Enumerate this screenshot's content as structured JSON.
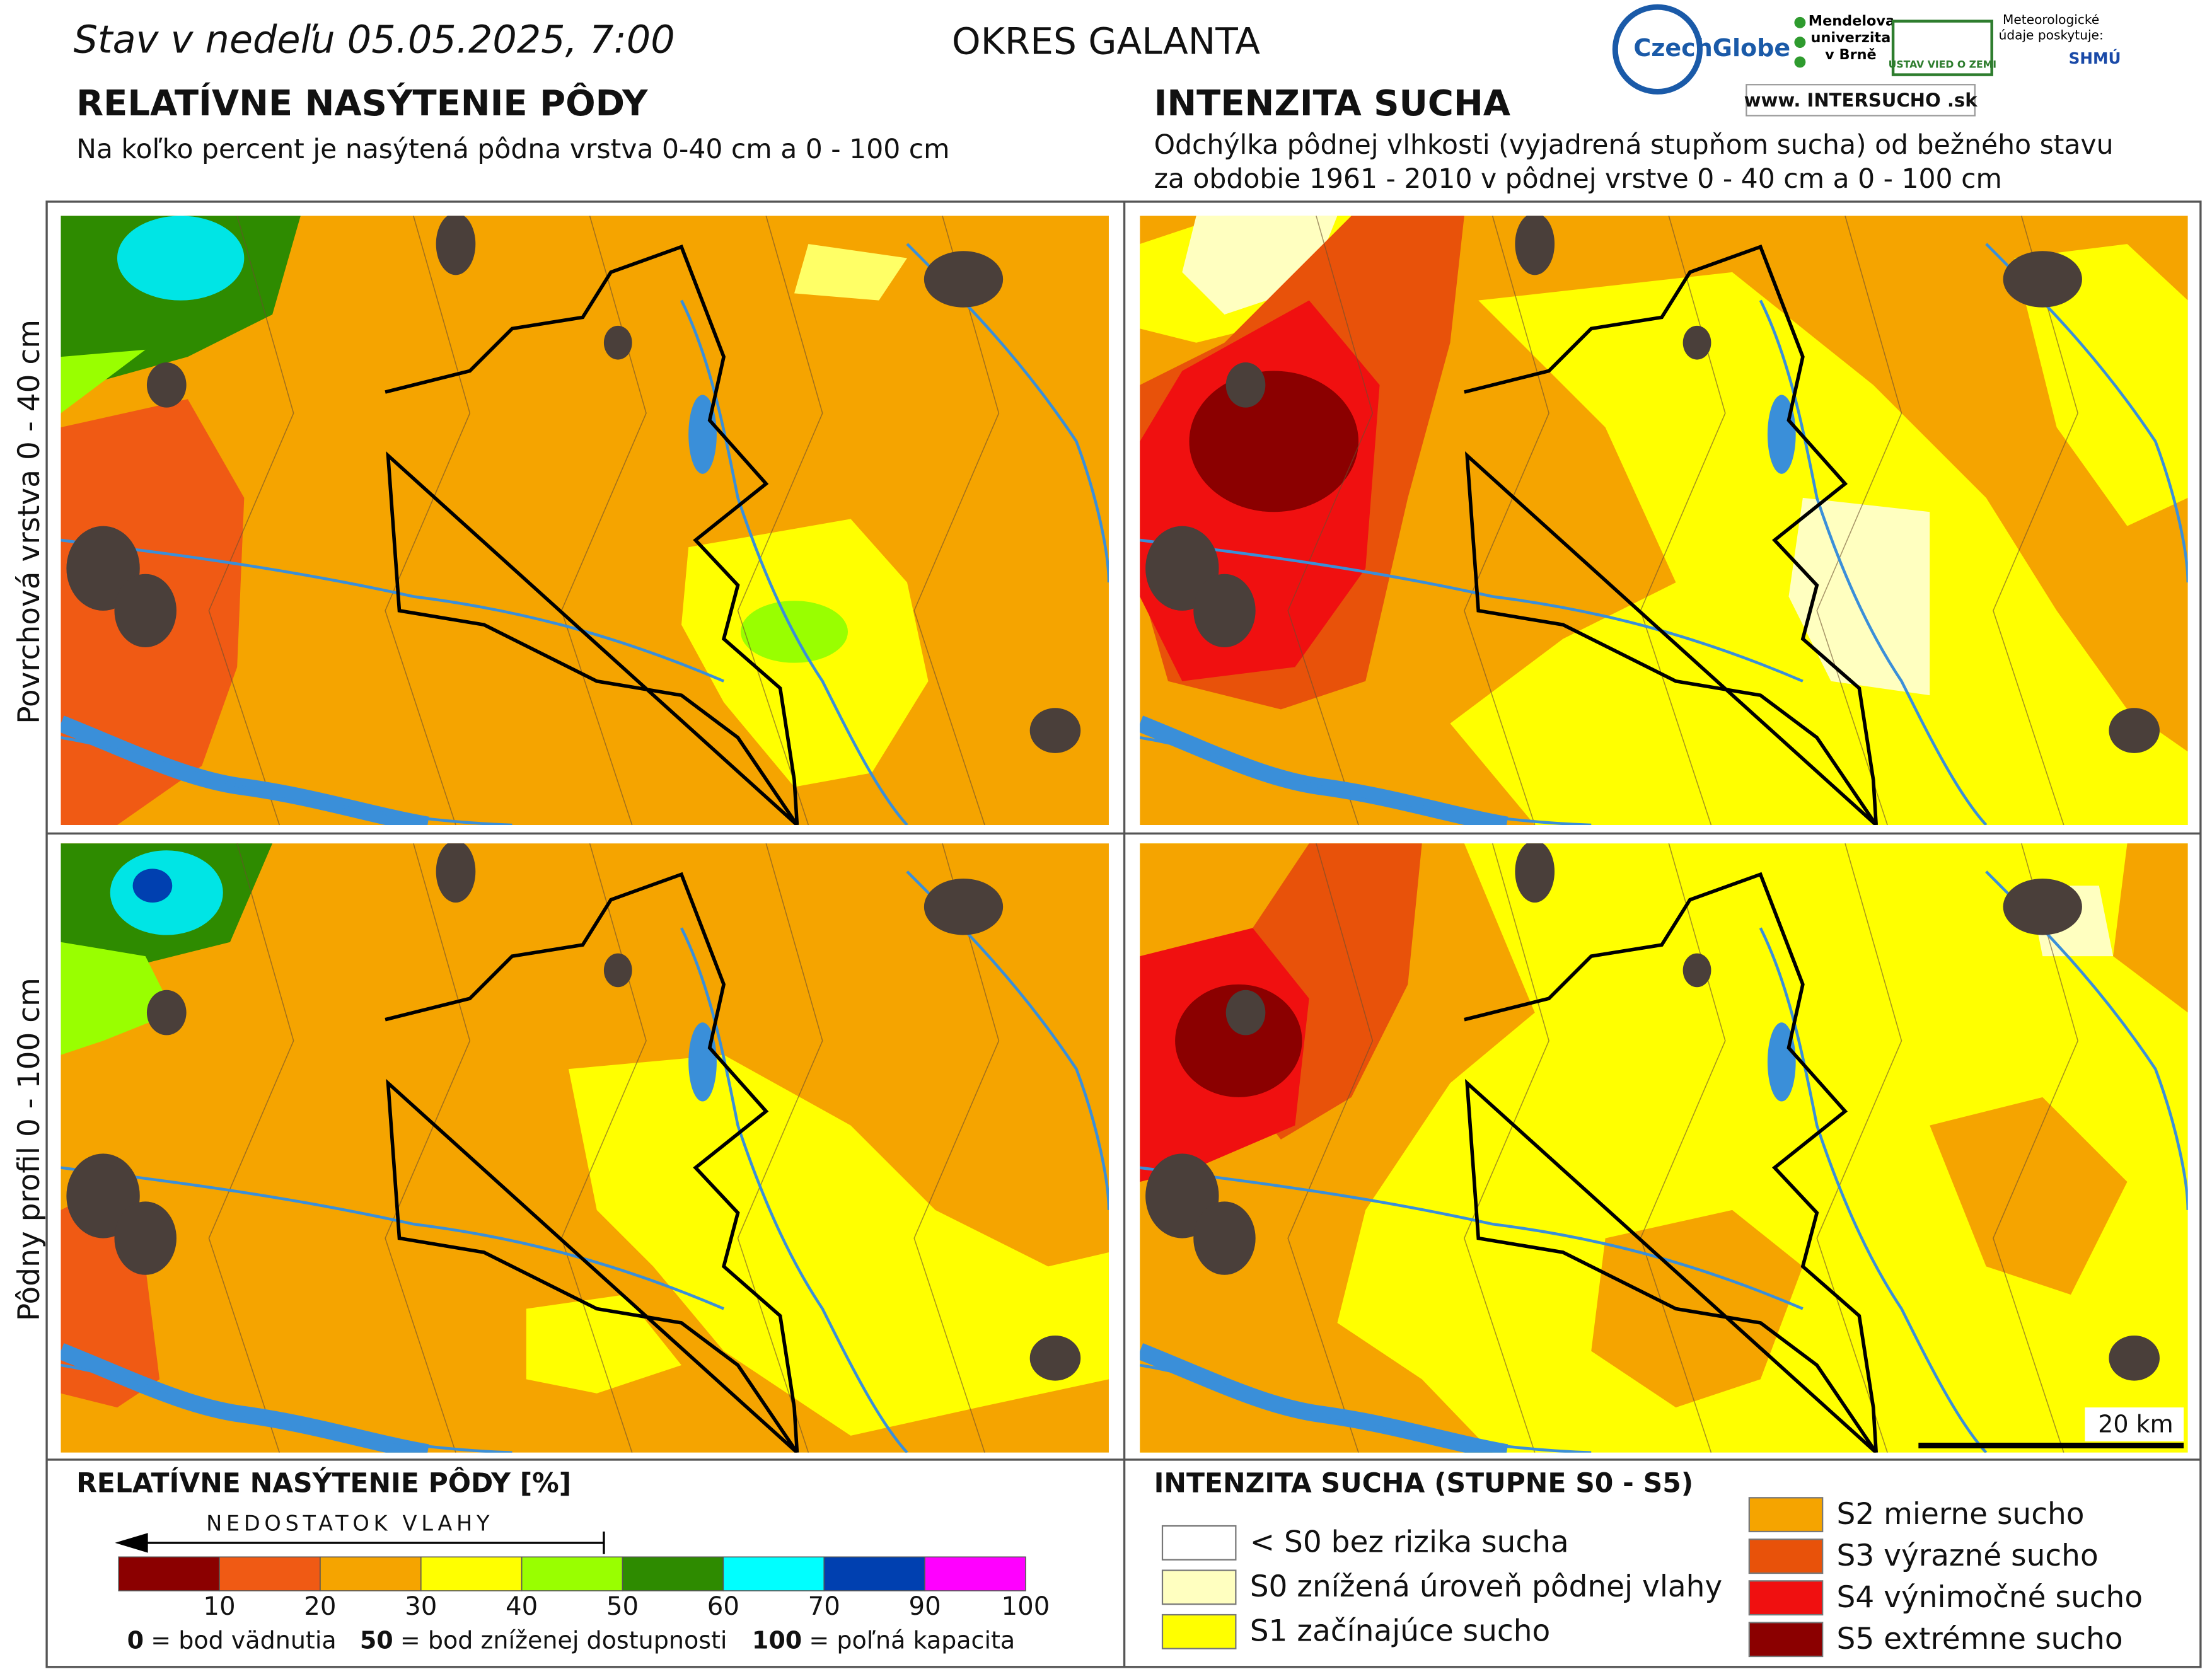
{
  "header": {
    "date_title": "Stav v nedeľu 05.05.2025, 7:00",
    "region": "OKRES  GALANTA"
  },
  "logos": {
    "czechglobe": "CzechGlobe",
    "mendelu": "Mendelova univerzita v Brně",
    "ustav": "ÚSTAV VIED O ZEMI",
    "meteo": "Meteorologické údaje poskytuje:",
    "shmu": "SHMÚ",
    "intersucho": "www. INTERSUCHO .sk"
  },
  "left": {
    "title": "RELATÍVNE NASÝTENIE PÔDY",
    "subtitle": "Na koľko percent je nasýtená pôdna vrstva 0-40 cm a 0 - 100 cm"
  },
  "right": {
    "title": "INTENZITA SUCHA",
    "subtitle_lines": [
      "Odchýlka pôdnej vlhkosti (vyjadrená stupňom sucha) od bežného stavu",
      "za obdobie 1961 - 2010 v pôdnej vrstve 0 - 40 cm a 0 - 100 cm"
    ]
  },
  "rows": [
    "Povrchová vrstva 0 - 40 cm",
    "Pôdny profil 0 - 100 cm"
  ],
  "scale_bar": "20 km",
  "saturation_legend": {
    "title": "RELATÍVNE NASÝTENIE PÔDY [%]",
    "arrow_label": "NEDOSTATOK VLAHY",
    "colors": [
      "#8b0000",
      "#f05a14",
      "#f5a400",
      "#ffff00",
      "#99ff00",
      "#2e8b00",
      "#00ffff",
      "#0040b0",
      "#ff00ff"
    ],
    "ticks": [
      10,
      20,
      30,
      40,
      50,
      60,
      70,
      90,
      100
    ],
    "notes": [
      {
        "key": "0",
        "text": "= bod vädnutia"
      },
      {
        "key": "50",
        "text": "= bod zníženej dostupnosti"
      },
      {
        "key": "100",
        "text": "= poľná kapacita"
      }
    ]
  },
  "drought_legend": {
    "title": "INTENZITA SUCHA (STUPNE S0 - S5)",
    "items": [
      {
        "label": "< S0 bez rizika sucha",
        "color": "#ffffff"
      },
      {
        "label": "S0 znížená úroveň pôdnej vlahy",
        "color": "#ffffc0"
      },
      {
        "label": "S1 začínajúce sucho",
        "color": "#ffff00"
      },
      {
        "label": "S2 mierne sucho",
        "color": "#f5a400"
      },
      {
        "label": "S3 výrazné sucho",
        "color": "#e8520a"
      },
      {
        "label": "S4 výnimočné sucho",
        "color": "#f01010"
      },
      {
        "label": "S5 extrémne sucho",
        "color": "#8b0000"
      }
    ]
  }
}
